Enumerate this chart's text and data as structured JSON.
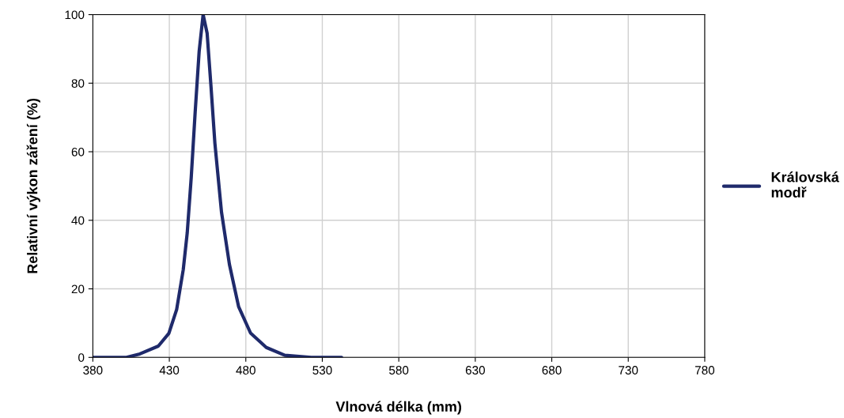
{
  "chart_data": {
    "type": "line",
    "xlabel": "Vlnová délka (mm)",
    "ylabel": "Relativní výkon záření (%)",
    "xlim": [
      380,
      780
    ],
    "xticks": [
      380,
      430,
      480,
      530,
      580,
      630,
      680,
      730,
      780
    ],
    "ylim": [
      0,
      100
    ],
    "yticks": [
      0,
      20,
      40,
      60,
      80,
      100
    ],
    "grid": true,
    "legend": "right",
    "series": [
      {
        "name": "Královská\nmodř",
        "color": "#1f2a6b",
        "x": [
          380,
          402,
          410.7,
          422.8,
          429.7,
          434.8,
          439.1,
          441.7,
          444.3,
          446.9,
          449.5,
          452.1,
          454.7,
          457.2,
          459.8,
          464.1,
          469.3,
          475.3,
          483.1,
          493.4,
          505.5,
          522.8,
          542.6
        ],
        "values": [
          0,
          0,
          1,
          3.3,
          7,
          14,
          25.6,
          36.3,
          52.4,
          71.6,
          89.3,
          100,
          94.6,
          79.3,
          62.4,
          42.4,
          27.1,
          14.8,
          7.1,
          2.9,
          0.6,
          0,
          0
        ]
      }
    ]
  }
}
